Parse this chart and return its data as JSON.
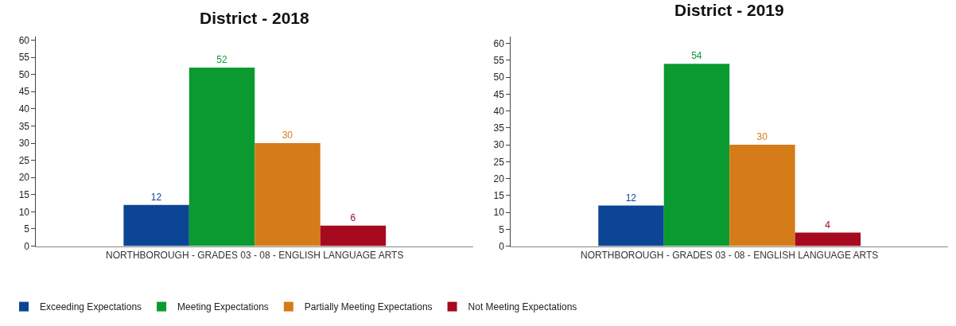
{
  "chart_data": [
    {
      "type": "bar",
      "title": "District - 2018",
      "categories": [
        "NORTHBOROUGH - GRADES 03 - 08 - ENGLISH LANGUAGE ARTS"
      ],
      "series": [
        {
          "name": "Exceeding Expectations",
          "color": "#0b4593",
          "values": [
            12
          ]
        },
        {
          "name": "Meeting Expectations",
          "color": "#0a9a30",
          "values": [
            52
          ]
        },
        {
          "name": "Partially Meeting Expectations",
          "color": "#d57b17",
          "values": [
            30
          ]
        },
        {
          "name": "Not Meeting Expectations",
          "color": "#a50a1f",
          "values": [
            6
          ]
        }
      ],
      "ylim": [
        0,
        61
      ],
      "yticks": [
        0,
        5,
        10,
        15,
        20,
        25,
        30,
        35,
        40,
        45,
        50,
        55,
        60
      ],
      "data_labels": true,
      "legend": "bottom"
    },
    {
      "type": "bar",
      "title": "District - 2019",
      "categories": [
        "NORTHBOROUGH - GRADES 03 - 08 - ENGLISH LANGUAGE ARTS"
      ],
      "series": [
        {
          "name": "Exceeding Expectations",
          "color": "#0b4593",
          "values": [
            12
          ]
        },
        {
          "name": "Meeting Expectations",
          "color": "#0a9a30",
          "values": [
            54
          ]
        },
        {
          "name": "Partially Meeting Expectations",
          "color": "#d57b17",
          "values": [
            30
          ]
        },
        {
          "name": "Not Meeting Expectations",
          "color": "#a50a1f",
          "values": [
            4
          ]
        }
      ],
      "ylim": [
        0,
        62
      ],
      "yticks": [
        0,
        5,
        10,
        15,
        20,
        25,
        30,
        35,
        40,
        45,
        50,
        55,
        60
      ],
      "data_labels": true
    }
  ]
}
